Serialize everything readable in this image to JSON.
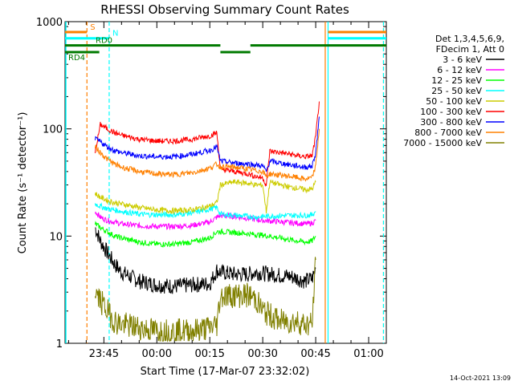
{
  "chart_data": {
    "type": "line",
    "title": "RHESSI Observing Summary Count Rates",
    "xlabel": "Start Time (17-Mar-07 23:32:02)",
    "ylabel": "Count Rate (s⁻¹ detector⁻¹)",
    "xlim_minutes_after_2330": [
      4.0,
      95.0
    ],
    "ylim": [
      1,
      1000
    ],
    "yscale": "log",
    "x_ticks": [
      {
        "label": "23:45",
        "minute": 15
      },
      {
        "label": "00:00",
        "minute": 30
      },
      {
        "label": "00:15",
        "minute": 45
      },
      {
        "label": "00:30",
        "minute": 60
      },
      {
        "label": "00:45",
        "minute": 75
      },
      {
        "label": "01:00",
        "minute": 90
      }
    ],
    "y_ticks": [
      {
        "label": "1",
        "value": 1
      },
      {
        "label": "10",
        "value": 10
      },
      {
        "label": "100",
        "value": 100
      },
      {
        "label": "1000",
        "value": 1000
      }
    ],
    "legend_header": [
      "Det 1,3,4,5,6,9,",
      "FDecim 1, Att 0"
    ],
    "series": [
      {
        "name": "3 - 6 keV",
        "color": "#000000",
        "x": [
          12.5,
          14,
          16,
          18,
          20,
          25,
          30,
          35,
          40,
          45,
          47,
          48,
          52,
          56,
          58,
          60,
          65,
          68,
          70,
          72,
          74,
          75
        ],
        "y": [
          12,
          9,
          7,
          5.5,
          4.6,
          3.8,
          3.5,
          3.4,
          3.5,
          3.6,
          4.8,
          4.6,
          4.4,
          4.4,
          4.6,
          4.5,
          4.3,
          4.2,
          4.0,
          3.8,
          4.0,
          5.0
        ]
      },
      {
        "name": "6 - 12 keV",
        "color": "#ff00ff",
        "x": [
          12.5,
          14,
          16,
          18,
          20,
          25,
          30,
          35,
          40,
          45,
          47,
          48,
          52,
          56,
          58,
          60,
          65,
          68,
          70,
          72,
          74,
          75
        ],
        "y": [
          17,
          15,
          14,
          13.5,
          13,
          12.5,
          12.3,
          12.3,
          12.6,
          13.5,
          15,
          15.5,
          15.3,
          14.6,
          14.3,
          14,
          13.6,
          13.3,
          13.2,
          13.0,
          13.2,
          14.0
        ]
      },
      {
        "name": "12 - 25 keV",
        "color": "#00ff00",
        "x": [
          12.5,
          14,
          16,
          18,
          20,
          25,
          30,
          35,
          40,
          45,
          47,
          48,
          52,
          56,
          58,
          60,
          65,
          68,
          70,
          72,
          74,
          75
        ],
        "y": [
          13,
          12,
          11,
          10,
          9.6,
          8.8,
          8.4,
          8.4,
          8.8,
          9.6,
          11,
          11,
          10.8,
          10.5,
          10.3,
          10.2,
          9.6,
          9.2,
          9.0,
          8.8,
          9.0,
          10
        ]
      },
      {
        "name": "25 - 50 keV",
        "color": "#00ffff",
        "x": [
          12.5,
          14,
          16,
          18,
          20,
          25,
          30,
          35,
          40,
          45,
          47,
          48,
          52,
          56,
          58,
          60,
          65,
          68,
          70,
          72,
          74,
          75
        ],
        "y": [
          20,
          19,
          18,
          17.5,
          17,
          16,
          15.8,
          15.8,
          16.5,
          17.8,
          18.5,
          16,
          15.6,
          15.3,
          15.0,
          15.2,
          15.5,
          15.6,
          15.6,
          15.6,
          15.8,
          17
        ]
      },
      {
        "name": "50 - 100 keV",
        "color": "#cccc00",
        "x": [
          12.5,
          14,
          16,
          18,
          20,
          25,
          30,
          35,
          40,
          45,
          47,
          48,
          52,
          56,
          58,
          60,
          61,
          62,
          65,
          68,
          70,
          72,
          74,
          75
        ],
        "y": [
          25,
          23,
          21.5,
          20.5,
          20,
          18.5,
          17.5,
          17.2,
          17.6,
          19,
          20.5,
          30,
          32,
          31,
          30,
          30,
          17,
          32,
          30,
          28.5,
          28,
          27,
          27.5,
          32
        ]
      },
      {
        "name": "100 - 300 keV",
        "color": "#ff0000",
        "x": [
          12.5,
          14,
          16,
          18,
          20,
          25,
          30,
          35,
          40,
          45,
          47,
          48,
          52,
          56,
          58,
          60,
          61,
          62,
          65,
          68,
          70,
          72,
          74,
          75,
          76
        ],
        "y": [
          60,
          110,
          100,
          92,
          87,
          80,
          77,
          77,
          80,
          86,
          92,
          42,
          40,
          38,
          36,
          35,
          30,
          62,
          60,
          58,
          56,
          55,
          56,
          85,
          180
        ]
      },
      {
        "name": "300 - 800 keV",
        "color": "#0000ff",
        "x": [
          12.5,
          14,
          16,
          18,
          20,
          25,
          30,
          35,
          40,
          45,
          47,
          48,
          52,
          56,
          58,
          60,
          61,
          62,
          65,
          68,
          70,
          72,
          74,
          75,
          76
        ],
        "y": [
          80,
          76,
          68,
          63,
          60,
          56,
          55,
          55,
          58,
          63,
          68,
          50,
          48,
          47,
          46,
          45,
          40,
          50,
          48,
          46,
          45,
          44,
          45,
          60,
          130
        ]
      },
      {
        "name": "800 - 7000 keV",
        "color": "#ff8000",
        "x": [
          12.5,
          14,
          16,
          18,
          20,
          25,
          30,
          35,
          40,
          45,
          47,
          48,
          52,
          56,
          58,
          60,
          61,
          62,
          65,
          68,
          70,
          72,
          74,
          75,
          76
        ],
        "y": [
          68,
          60,
          52,
          47,
          44,
          40,
          38,
          37.5,
          39,
          43,
          47,
          44,
          44,
          42,
          41,
          40,
          36,
          38,
          37,
          36,
          35,
          34,
          35,
          45,
          100
        ]
      },
      {
        "name": "7000 - 15000 keV",
        "color": "#808000",
        "x": [
          12.5,
          14,
          16,
          18,
          20,
          25,
          30,
          35,
          40,
          45,
          47,
          48,
          52,
          56,
          58,
          60,
          65,
          68,
          70,
          72,
          74,
          75
        ],
        "y": [
          3,
          2.5,
          2,
          1.6,
          1.5,
          1.4,
          1.3,
          1.3,
          1.3,
          1.4,
          1.5,
          2.8,
          2.8,
          2.8,
          2.6,
          2.0,
          1.6,
          1.6,
          1.6,
          1.5,
          1.5,
          6.0
        ]
      }
    ],
    "spacecraft_flags": [
      {
        "label": "S",
        "color": "#ff8000",
        "x": [
          4,
          10.2
        ],
        "y": 800
      },
      {
        "label": "N",
        "color": "#00ffff",
        "x": [
          4,
          16.5
        ],
        "y": 700
      },
      {
        "label": "RD0",
        "color": "#007a00",
        "x": [
          4,
          48
        ],
        "y": 600
      },
      {
        "label": "RD4",
        "color": "#007a00",
        "x": [
          4,
          13.7
        ],
        "y": 520
      },
      {
        "label": "",
        "color": "#007a00",
        "x": [
          48,
          56.5
        ],
        "y": 520
      },
      {
        "label": "",
        "color": "#007a00",
        "x": [
          56.5,
          95
        ],
        "y": 600
      },
      {
        "label": "",
        "color": "#ff8000",
        "x": [
          78.5,
          95
        ],
        "y": 800
      },
      {
        "label": "",
        "color": "#00ffff",
        "x": [
          78.5,
          95
        ],
        "y": 700
      }
    ],
    "vertical_markers": [
      {
        "x": 10.2,
        "color": "#ff8000",
        "style": "dashed"
      },
      {
        "x": 16.5,
        "color": "#00ffff",
        "style": "dashed"
      },
      {
        "x": 77.7,
        "color": "#ff8000",
        "style": "solid"
      },
      {
        "x": 78.5,
        "color": "#00ffff",
        "style": "solid"
      },
      {
        "x": 94.2,
        "color": "#ff8000",
        "style": "dashed"
      },
      {
        "x": 94.2,
        "color": "#00ffff",
        "style": "dashed"
      }
    ],
    "grid": false,
    "legend_position": "right"
  },
  "footer": {
    "date_stamp": "14-Oct-2021 13:09"
  }
}
